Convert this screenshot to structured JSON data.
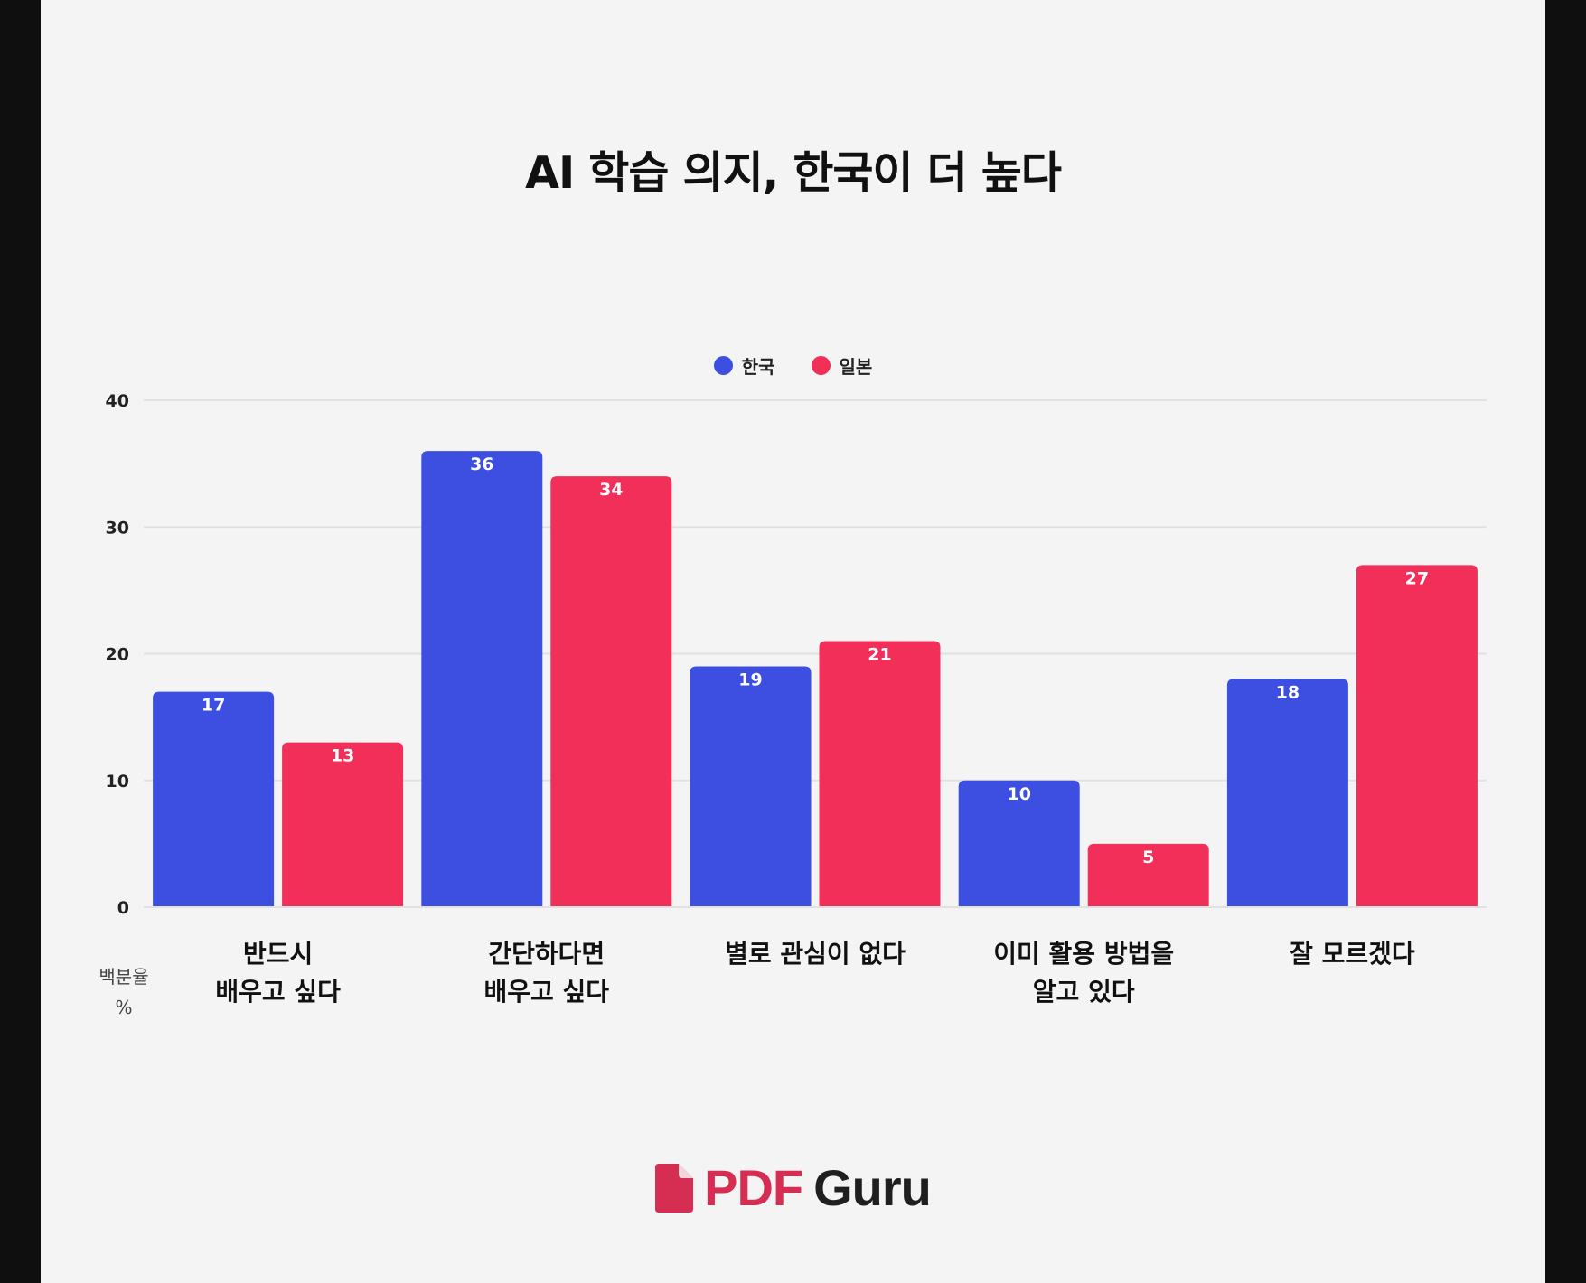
{
  "chart_data": {
    "type": "bar",
    "title": "AI 학습 의지, 한국이 더 높다",
    "ylabel": "백분율\n%",
    "ylim": [
      0,
      40
    ],
    "yticks": [
      0,
      10,
      20,
      30,
      40
    ],
    "grid": true,
    "legend_position": "top-center",
    "categories": [
      "반드시\n배우고 싶다",
      "간단하다면\n배우고 싶다",
      "별로 관심이 없다",
      "이미 활용 방법을\n알고 있다",
      "잘 모르겠다"
    ],
    "series": [
      {
        "name": "한국",
        "color": "#3d4fe0",
        "values": [
          17,
          36,
          19,
          10,
          18
        ]
      },
      {
        "name": "일본",
        "color": "#f22f58",
        "values": [
          13,
          34,
          21,
          5,
          27
        ]
      }
    ]
  },
  "logo": {
    "part1": "PDF",
    "part2": "Guru",
    "part1_color": "#d62d52",
    "part2_color": "#1f1f1f",
    "icon": "document-icon"
  }
}
